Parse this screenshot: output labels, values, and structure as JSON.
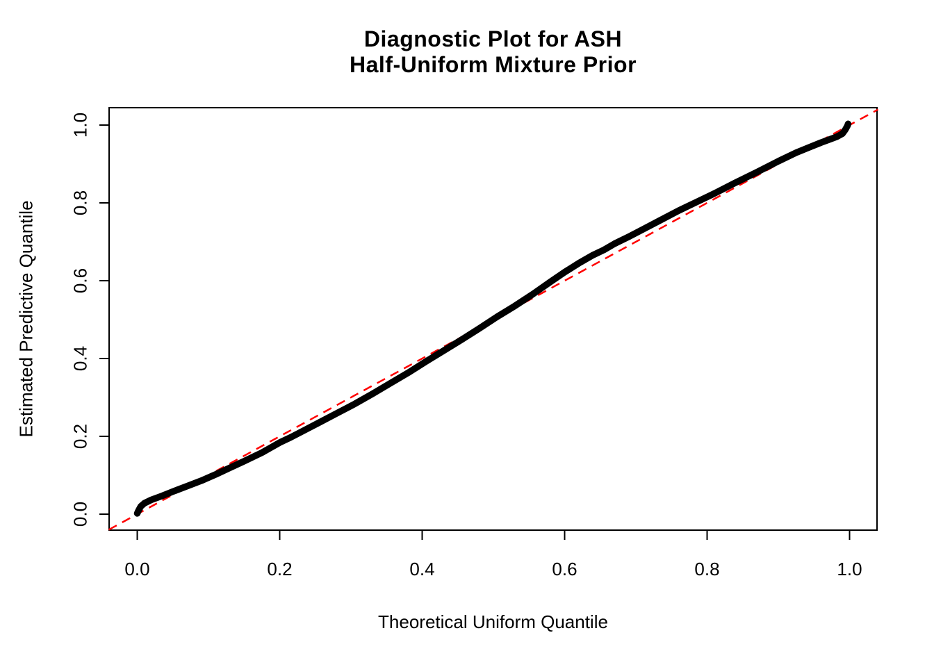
{
  "figure": {
    "title_line1": "Diagnostic Plot for ASH",
    "title_line2": "Half-Uniform Mixture Prior",
    "xlabel": "Theoretical Uniform Quantile",
    "ylabel": "Estimated Predictive Quantile"
  },
  "colors": {
    "background": "#FFFFFF",
    "points": "#000000",
    "axis": "#000000",
    "reference_line": "#FF0000"
  },
  "chart_data": {
    "type": "scatter",
    "title": "Diagnostic Plot for ASH\nHalf-Uniform Mixture Prior",
    "xlabel": "Theoretical Uniform Quantile",
    "ylabel": "Estimated Predictive Quantile",
    "xlim": [
      -0.04,
      1.04
    ],
    "ylim": [
      -0.04,
      1.04
    ],
    "x_ticks": [
      0.0,
      0.2,
      0.4,
      0.6,
      0.8,
      1.0
    ],
    "y_ticks": [
      0.0,
      0.2,
      0.4,
      0.6,
      0.8,
      1.0
    ],
    "x_tick_labels": [
      "0.0",
      "0.2",
      "0.4",
      "0.6",
      "0.8",
      "1.0"
    ],
    "y_tick_labels": [
      "0.0",
      "0.2",
      "0.4",
      "0.6",
      "0.8",
      "1.0"
    ],
    "grid": false,
    "legend": null,
    "reference_line": {
      "type": "abline",
      "intercept": 0,
      "slope": 1,
      "style": "dashed",
      "color": "#FF0000"
    },
    "series": [
      {
        "name": "estimated-predictive-quantiles",
        "style": "dense-points",
        "color": "#000000",
        "points": [
          [
            0.0,
            0.002
          ],
          [
            0.002,
            0.01
          ],
          [
            0.005,
            0.02
          ],
          [
            0.01,
            0.028
          ],
          [
            0.02,
            0.037
          ],
          [
            0.035,
            0.047
          ],
          [
            0.05,
            0.058
          ],
          [
            0.07,
            0.072
          ],
          [
            0.09,
            0.086
          ],
          [
            0.11,
            0.102
          ],
          [
            0.13,
            0.119
          ],
          [
            0.15,
            0.136
          ],
          [
            0.175,
            0.158
          ],
          [
            0.2,
            0.184
          ],
          [
            0.215,
            0.197
          ],
          [
            0.235,
            0.216
          ],
          [
            0.255,
            0.235
          ],
          [
            0.28,
            0.259
          ],
          [
            0.305,
            0.283
          ],
          [
            0.33,
            0.309
          ],
          [
            0.355,
            0.336
          ],
          [
            0.38,
            0.363
          ],
          [
            0.405,
            0.392
          ],
          [
            0.43,
            0.42
          ],
          [
            0.455,
            0.448
          ],
          [
            0.48,
            0.477
          ],
          [
            0.505,
            0.507
          ],
          [
            0.53,
            0.535
          ],
          [
            0.555,
            0.565
          ],
          [
            0.58,
            0.597
          ],
          [
            0.6,
            0.622
          ],
          [
            0.62,
            0.645
          ],
          [
            0.64,
            0.666
          ],
          [
            0.655,
            0.679
          ],
          [
            0.67,
            0.695
          ],
          [
            0.69,
            0.713
          ],
          [
            0.71,
            0.732
          ],
          [
            0.735,
            0.756
          ],
          [
            0.76,
            0.78
          ],
          [
            0.785,
            0.802
          ],
          [
            0.81,
            0.824
          ],
          [
            0.84,
            0.852
          ],
          [
            0.87,
            0.879
          ],
          [
            0.9,
            0.907
          ],
          [
            0.925,
            0.929
          ],
          [
            0.945,
            0.944
          ],
          [
            0.96,
            0.955
          ],
          [
            0.972,
            0.963
          ],
          [
            0.982,
            0.97
          ],
          [
            0.99,
            0.978
          ],
          [
            0.994,
            0.988
          ],
          [
            0.997,
            0.998
          ],
          [
            0.998,
            1.003
          ]
        ]
      }
    ]
  }
}
